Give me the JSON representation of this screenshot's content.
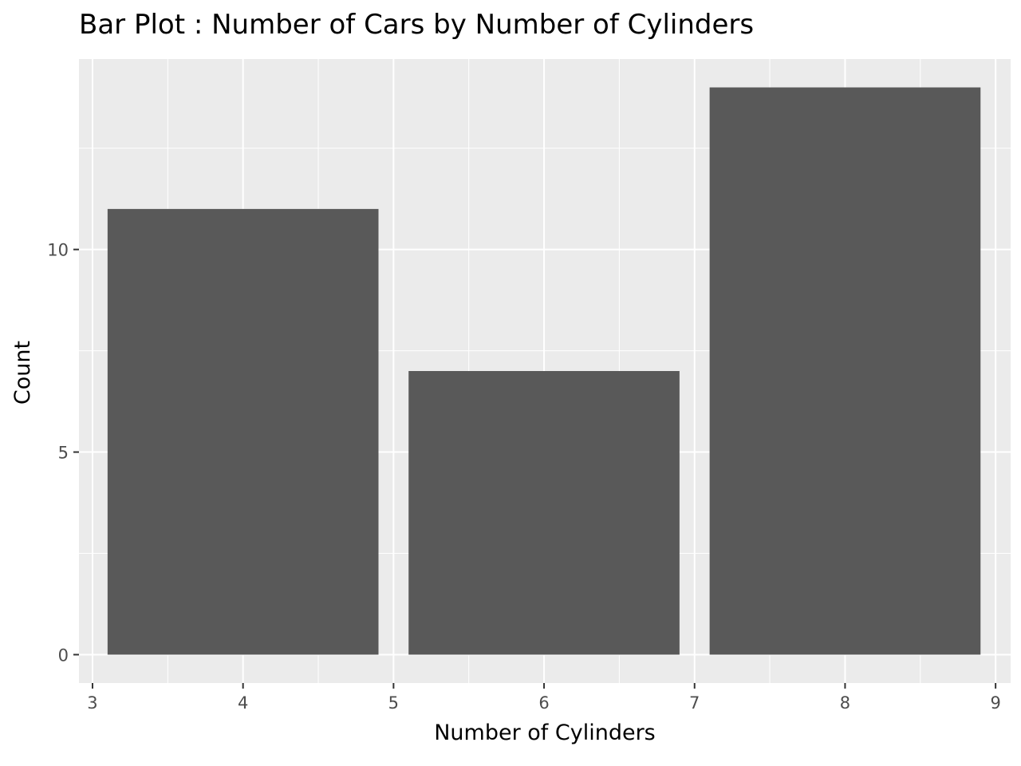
{
  "chart_data": {
    "type": "bar",
    "title": "Bar Plot : Number of Cars by Number of Cylinders",
    "xlabel": "Number of Cylinders",
    "ylabel": "Count",
    "x": [
      4,
      6,
      8
    ],
    "values": [
      11,
      7,
      14
    ],
    "bar_width": 1.8,
    "xlim": [
      2.91,
      9.1
    ],
    "ylim": [
      -0.7,
      14.7
    ],
    "x_ticks": [
      3,
      4,
      5,
      6,
      7,
      8,
      9
    ],
    "y_ticks": [
      0,
      5,
      10
    ],
    "grid": true,
    "colors": {
      "panel_background": "#ebebeb",
      "grid_major": "#ffffff",
      "bar_fill": "#595959",
      "tick_label": "#4d4d4d",
      "tick_mark": "#333333"
    }
  }
}
